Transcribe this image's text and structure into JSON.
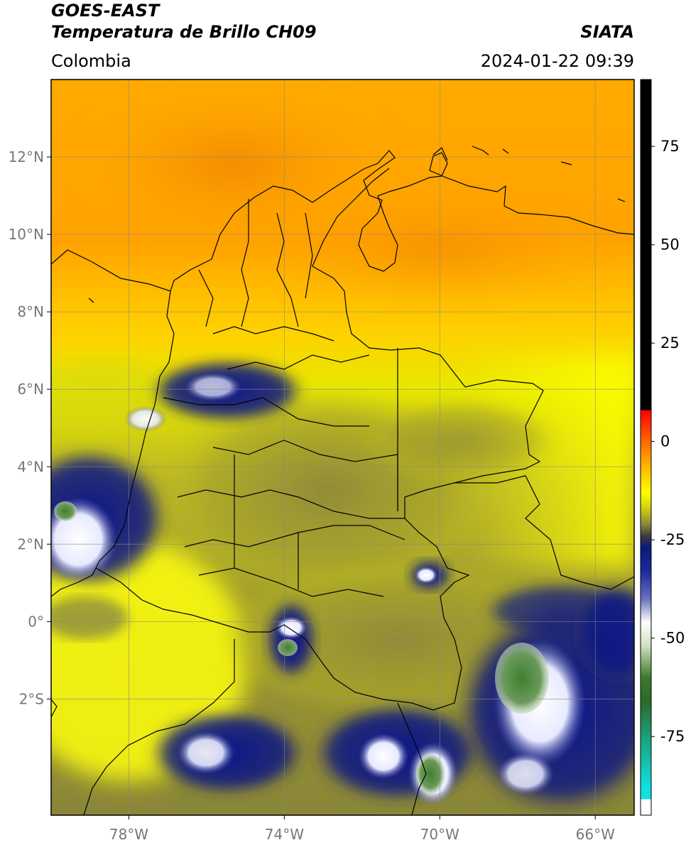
{
  "header": {
    "satellite": "GOES-EAST",
    "product": "Temperatura de Brillo CH09",
    "region": "Colombia",
    "organization": "SIATA",
    "timestamp": "2024-01-22 09:39"
  },
  "map": {
    "lon_range": [
      -80,
      -65
    ],
    "lat_range": [
      -5,
      14
    ],
    "lat_ticks": [
      {
        "value": 12,
        "label": "12°N"
      },
      {
        "value": 10,
        "label": "10°N"
      },
      {
        "value": 8,
        "label": "8°N"
      },
      {
        "value": 6,
        "label": "6°N"
      },
      {
        "value": 4,
        "label": "4°N"
      },
      {
        "value": 2,
        "label": "2°N"
      },
      {
        "value": 0,
        "label": "0°"
      },
      {
        "value": -2,
        "label": "2°S"
      }
    ],
    "lon_ticks": [
      {
        "value": -78,
        "label": "78°W"
      },
      {
        "value": -74,
        "label": "74°W"
      },
      {
        "value": -70,
        "label": "70°W"
      },
      {
        "value": -66,
        "label": "66°W"
      }
    ],
    "grid": true
  },
  "colorbar": {
    "range": [
      -95,
      92
    ],
    "ticks": [
      {
        "value": 75,
        "label": "75"
      },
      {
        "value": 50,
        "label": "50"
      },
      {
        "value": 25,
        "label": "25"
      },
      {
        "value": 0,
        "label": "0"
      },
      {
        "value": -25,
        "label": "-25"
      },
      {
        "value": -50,
        "label": "-50"
      },
      {
        "value": -75,
        "label": "-75"
      }
    ],
    "stops": [
      {
        "value": 92,
        "color": "#000000"
      },
      {
        "value": 8,
        "color": "#000000"
      },
      {
        "value": 7.9,
        "color": "#ff0000"
      },
      {
        "value": 0,
        "color": "#ff6a00"
      },
      {
        "value": -8,
        "color": "#ffc800"
      },
      {
        "value": -13,
        "color": "#ffff00"
      },
      {
        "value": -17,
        "color": "#cfd00a"
      },
      {
        "value": -21,
        "color": "#8a8a3a"
      },
      {
        "value": -24,
        "color": "#3c3c3c"
      },
      {
        "value": -27,
        "color": "#0a1a7a"
      },
      {
        "value": -33,
        "color": "#1a2a9a"
      },
      {
        "value": -40,
        "color": "#6a70c0"
      },
      {
        "value": -46,
        "color": "#ffffff"
      },
      {
        "value": -52,
        "color": "#d0e0c0"
      },
      {
        "value": -60,
        "color": "#3a7a2a"
      },
      {
        "value": -66,
        "color": "#2a6a2a"
      },
      {
        "value": -75,
        "color": "#1aa07a"
      },
      {
        "value": -88,
        "color": "#10e0e0"
      },
      {
        "value": -90.9,
        "color": "#10e0e0"
      },
      {
        "value": -91,
        "color": "#ffffff"
      },
      {
        "value": -95,
        "color": "#ffffff"
      }
    ]
  },
  "colors": {
    "warm_orange": "#ff9c00",
    "orange_deep": "#f08800",
    "yellow": "#ffff00",
    "olive": "#9a9a2a",
    "cold_navy": "#0d1780",
    "cold_white": "#f4f4ff",
    "cold_green": "#4a8a3a"
  }
}
